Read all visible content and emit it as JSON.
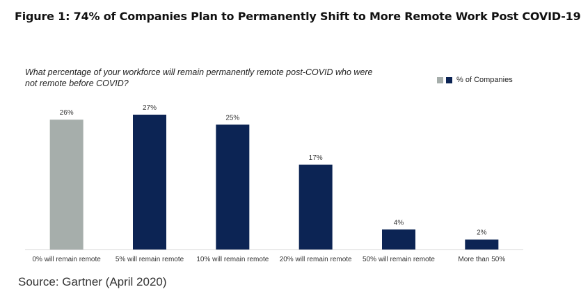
{
  "figure_title": "Figure 1: 74% of Companies Plan to Permanently Shift to More Remote Work Post COVID-19",
  "source": "Source: Gartner (April 2020)",
  "colors": {
    "gray": "#a6aeab",
    "navy": "#0c2454",
    "axis": "#d9d9d9",
    "text": "#333333"
  },
  "chart_data": {
    "type": "bar",
    "title": "What percentage of your workforce will remain permanently remote post-COVID who were not remote before COVID?",
    "xlabel": "",
    "ylabel": "",
    "categories": [
      "0% will remain remote",
      "5% will remain remote",
      "10% will remain remote",
      "20% will remain remote",
      "50% will remain remote",
      "More than 50%"
    ],
    "series": [
      {
        "name": "% of Companies",
        "values": [
          26,
          27,
          25,
          17,
          4,
          2
        ]
      }
    ],
    "data_labels": [
      "26%",
      "27%",
      "25%",
      "17%",
      "4%",
      "2%"
    ],
    "bar_colors": [
      "#a6aeab",
      "#0c2454",
      "#0c2454",
      "#0c2454",
      "#0c2454",
      "#0c2454"
    ],
    "ylim": [
      0,
      27
    ],
    "grid": false,
    "legend": "top-right"
  }
}
